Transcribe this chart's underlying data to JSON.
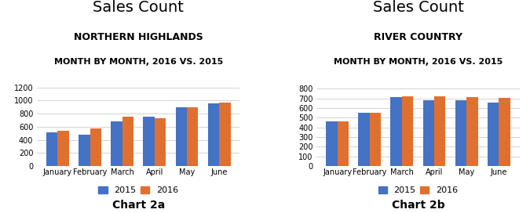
{
  "chart_a": {
    "title": "Sales Count",
    "subtitle1": "NORTHERN HIGHLANDS",
    "subtitle2": "MONTH BY MONTH, 2016 VS. 2015",
    "caption": "Chart 2a",
    "categories": [
      "January",
      "February",
      "March",
      "April",
      "May",
      "June"
    ],
    "values_2015": [
      510,
      480,
      680,
      755,
      895,
      960
    ],
    "values_2016": [
      535,
      575,
      760,
      730,
      895,
      965
    ],
    "ylim": [
      0,
      1300
    ],
    "yticks": [
      0,
      200,
      400,
      600,
      800,
      1000,
      1200
    ]
  },
  "chart_b": {
    "title": "Sales Count",
    "subtitle1": "RIVER COUNTRY",
    "subtitle2": "MONTH BY MONTH, 2016 VS. 2015",
    "caption": "Chart 2b",
    "categories": [
      "January",
      "February",
      "March",
      "April",
      "May",
      "June"
    ],
    "values_2015": [
      462,
      548,
      715,
      682,
      678,
      660
    ],
    "values_2016": [
      460,
      552,
      725,
      722,
      710,
      705
    ],
    "ylim": [
      0,
      880
    ],
    "yticks": [
      0,
      100,
      200,
      300,
      400,
      500,
      600,
      700,
      800
    ]
  },
  "color_2015": "#4472C4",
  "color_2016": "#E07030",
  "bar_width": 0.35,
  "background_color": "#ffffff",
  "grid_color": "#cccccc",
  "title_fontsize": 14,
  "subtitle1_fontsize": 9,
  "subtitle2_fontsize": 8,
  "tick_fontsize": 7,
  "caption_fontsize": 10,
  "legend_fontsize": 8
}
